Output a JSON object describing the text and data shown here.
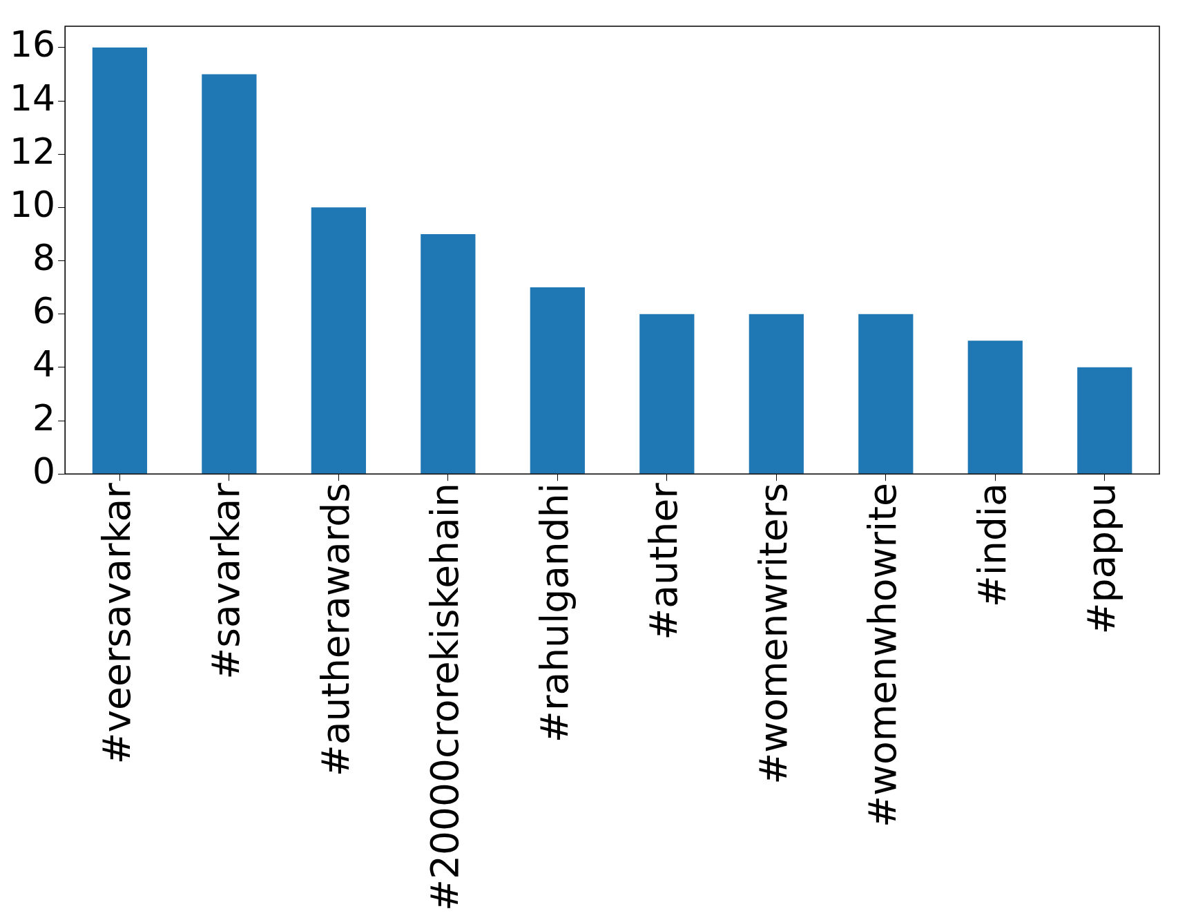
{
  "chart_data": {
    "type": "bar",
    "categories": [
      "#veersavarkar",
      "#savarkar",
      "#autherawards",
      "#20000crorekiskehain",
      "#rahulgandhi",
      "#auther",
      "#womenwriters",
      "#womenwhowrite",
      "#india",
      "#pappu"
    ],
    "values": [
      16,
      15,
      10,
      9,
      7,
      6,
      6,
      6,
      5,
      4
    ],
    "color": "#1f77b4",
    "ylim": [
      0,
      16.8
    ],
    "yticks": [
      0,
      2,
      4,
      6,
      8,
      10,
      12,
      14,
      16
    ],
    "grid": false,
    "legend": false
  }
}
